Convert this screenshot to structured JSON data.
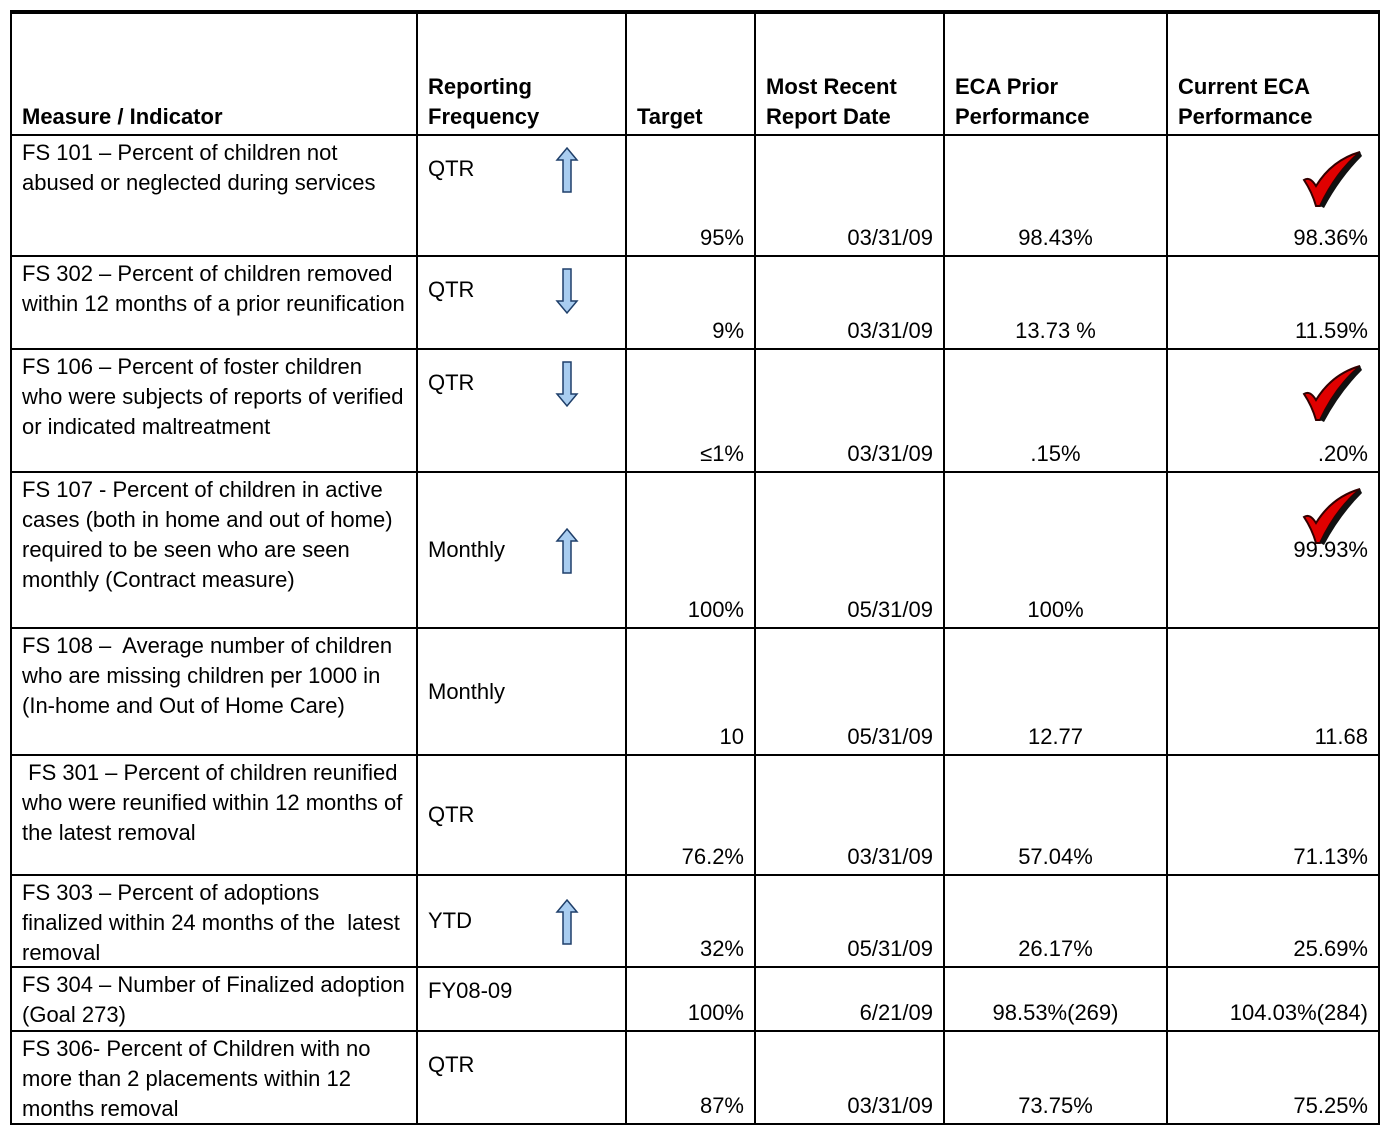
{
  "table": {
    "header": [
      "Measure / Indicator",
      "Reporting Frequency",
      "Target",
      "Most Recent Report Date",
      "ECA Prior Performance",
      "Current ECA Performance"
    ],
    "rows": [
      {
        "measure": "FS 101 – Percent of children not abused or neglected during services",
        "frequency": "QTR",
        "arrow": "up",
        "target": "95%",
        "date": "03/31/09",
        "prior": "98.43%",
        "current": "98.36%",
        "check": true
      },
      {
        "measure": "FS 302 – Percent of children removed within 12 months of a prior reunification",
        "frequency": "QTR",
        "arrow": "down",
        "target": "9%",
        "date": "03/31/09",
        "prior": "13.73 %",
        "current": "11.59%",
        "check": false
      },
      {
        "measure": "FS 106 – Percent of foster children who were subjects of reports of verified or indicated maltreatment",
        "frequency": "QTR",
        "arrow": "down",
        "target": "≤1%",
        "date": "03/31/09",
        "prior": ".15%",
        "current": ".20%",
        "check": true
      },
      {
        "measure": "FS 107 - Percent of children in active cases (both in home and out of home) required to be seen who are seen monthly (Contract measure)",
        "frequency": "Monthly",
        "arrow": "up",
        "target": "100%",
        "date": "05/31/09",
        "prior": "100%",
        "current": "99.93%",
        "check": true
      },
      {
        "measure": "FS 108 –  Average number of children who are missing children per 1000 in (In-home and Out of Home Care)",
        "frequency": "Monthly",
        "arrow": null,
        "target": "10",
        "date": "05/31/09",
        "prior": "12.77",
        "current": "11.68",
        "check": false
      },
      {
        "measure": " FS 301 – Percent of children reunified who were reunified within 12 months of the latest removal",
        "frequency": "QTR",
        "arrow": null,
        "target": "76.2%",
        "date": "03/31/09",
        "prior": "57.04%",
        "current": "71.13%",
        "check": false
      },
      {
        "measure": "FS 303 – Percent of adoptions finalized within 24 months of the  latest removal",
        "frequency": "YTD",
        "arrow": "up",
        "target": "32%",
        "date": "05/31/09",
        "prior": "26.17%",
        "current": "25.69%",
        "check": false
      },
      {
        "measure": "FS 304 – Number of Finalized adoption (Goal 273)",
        "frequency": "FY08-09",
        "arrow": null,
        "target": "100%",
        "date": "6/21/09",
        "prior": "98.53%(269)",
        "current": "104.03%(284)",
        "check": false
      },
      {
        "measure": "FS 306- Percent of Children with no more than 2 placements within 12 months removal",
        "frequency": "QTR",
        "arrow": null,
        "target": "87%",
        "date": "03/31/09",
        "prior": "73.75%",
        "current": "75.25%",
        "check": false
      }
    ]
  }
}
